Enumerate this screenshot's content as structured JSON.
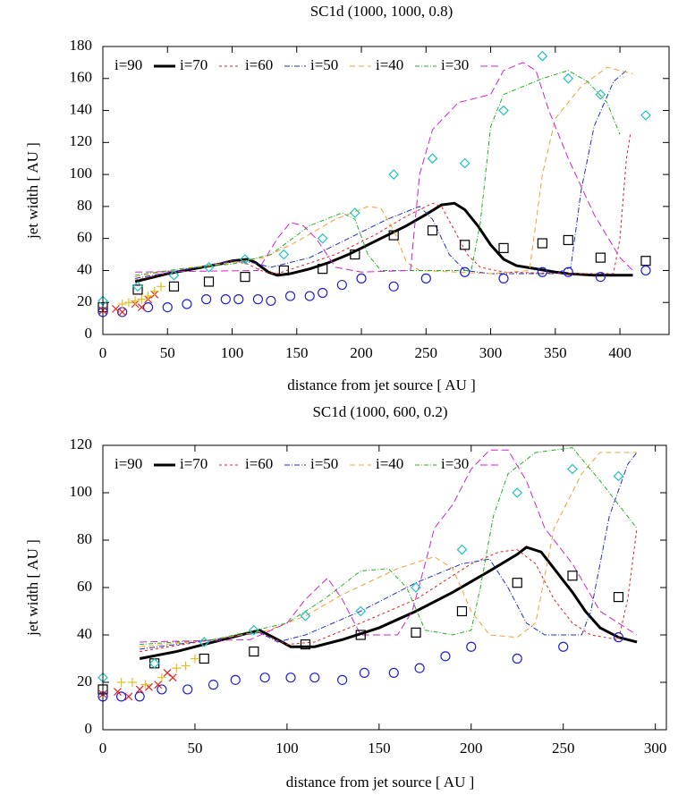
{
  "chart_data": [
    {
      "type": "line",
      "title": "SC1d (1000, 1000, 0.8)",
      "xlabel": "distance from jet source [ AU ]",
      "ylabel": "jet width [ AU ]",
      "xlim": [
        0,
        438
      ],
      "ylim": [
        0,
        180
      ],
      "xticks": [
        0,
        50,
        100,
        150,
        200,
        250,
        300,
        350,
        400
      ],
      "yticks": [
        0,
        20,
        40,
        60,
        80,
        100,
        120,
        140,
        160,
        180
      ],
      "legend": "top",
      "series": [
        {
          "name": "i=90",
          "color": "#000000",
          "width": 3,
          "dash": "none",
          "x": [
            25,
            30,
            50,
            70,
            90,
            100,
            112,
            118,
            128,
            135,
            145,
            160,
            175,
            190,
            205,
            220,
            235,
            250,
            262,
            272,
            280,
            290,
            300,
            310,
            320,
            335,
            350,
            360,
            380,
            410
          ],
          "values": [
            33,
            34,
            38,
            41,
            44,
            46,
            47,
            45,
            39,
            37,
            38,
            41,
            45,
            50,
            56,
            62,
            68,
            75,
            81,
            82,
            78,
            68,
            56,
            47,
            43,
            41,
            39,
            38,
            37,
            37
          ]
        },
        {
          "name": "i=70",
          "color": "#e02020",
          "width": 1,
          "dash": "3,3",
          "x": [
            25,
            60,
            100,
            112,
            125,
            135,
            150,
            180,
            210,
            235,
            255,
            262,
            272,
            282,
            292,
            310,
            360,
            395,
            400,
            405,
            408
          ],
          "values": [
            34,
            40,
            46,
            44,
            39,
            38,
            42,
            50,
            62,
            74,
            82,
            80,
            65,
            50,
            42,
            39,
            38,
            38,
            60,
            110,
            125
          ]
        },
        {
          "name": "i=60",
          "color": "#2030c0",
          "width": 1,
          "dash": "6,2,1,2",
          "x": [
            25,
            60,
            100,
            115,
            130,
            160,
            190,
            220,
            245,
            255,
            268,
            280,
            300,
            350,
            362,
            370,
            380,
            395,
            405
          ],
          "values": [
            35,
            40,
            46,
            45,
            42,
            48,
            60,
            72,
            80,
            72,
            50,
            40,
            38,
            38,
            42,
            90,
            130,
            158,
            165
          ]
        },
        {
          "name": "i=50",
          "color": "#f0a030",
          "width": 1,
          "dash": "6,4",
          "x": [
            25,
            60,
            100,
            125,
            150,
            180,
            205,
            215,
            225,
            235,
            245,
            300,
            330,
            340,
            350,
            370,
            390,
            410
          ],
          "values": [
            36,
            41,
            45,
            48,
            58,
            72,
            80,
            79,
            65,
            45,
            40,
            38,
            40,
            100,
            135,
            155,
            167,
            163
          ]
        },
        {
          "name": "i=40",
          "color": "#20b020",
          "width": 1,
          "dash": "5,2,1,2",
          "x": [
            25,
            60,
            100,
            130,
            160,
            185,
            195,
            205,
            215,
            285,
            292,
            300,
            310,
            340,
            360,
            375,
            390,
            400
          ],
          "values": [
            37,
            41,
            44,
            50,
            68,
            76,
            72,
            50,
            40,
            40,
            70,
            130,
            150,
            160,
            165,
            158,
            145,
            125
          ]
        },
        {
          "name": "i=30",
          "color": "#d020d0",
          "width": 1,
          "dash": "8,4",
          "x": [
            25,
            120,
            135,
            145,
            155,
            165,
            180,
            200,
            238,
            245,
            255,
            275,
            300,
            310,
            325,
            335,
            345,
            360,
            380,
            400,
            410
          ],
          "values": [
            39,
            40,
            60,
            70,
            68,
            60,
            42,
            39,
            40,
            100,
            128,
            145,
            150,
            165,
            170,
            165,
            140,
            110,
            75,
            48,
            40
          ]
        },
        {
          "marker": "square",
          "color": "#000000",
          "x": [
            0,
            27,
            55,
            82,
            110,
            140,
            170,
            195,
            225,
            255,
            280,
            310,
            340,
            360,
            385,
            420
          ],
          "values": [
            17,
            28,
            30,
            33,
            36,
            40,
            41,
            50,
            62,
            65,
            56,
            54,
            57,
            59,
            48,
            46
          ]
        },
        {
          "marker": "diamond",
          "color": "#20c0c0",
          "x": [
            0,
            27,
            55,
            82,
            110,
            140,
            170,
            195,
            225,
            255,
            280,
            310,
            340,
            360,
            385,
            420
          ],
          "values": [
            21,
            30,
            37,
            42,
            47,
            50,
            60,
            76,
            100,
            110,
            107,
            140,
            174,
            160,
            150,
            137
          ]
        },
        {
          "marker": "circle",
          "color": "#2020d0",
          "x": [
            0,
            15,
            35,
            50,
            65,
            80,
            95,
            105,
            120,
            130,
            145,
            160,
            170,
            185,
            200,
            225,
            250,
            280,
            310,
            340,
            360,
            385,
            420
          ],
          "values": [
            14,
            14,
            17,
            17,
            19,
            22,
            22,
            22,
            22,
            21,
            24,
            24,
            26,
            31,
            35,
            30,
            35,
            39,
            35,
            39,
            39,
            36,
            40
          ]
        },
        {
          "marker": "cross",
          "color": "#e02020",
          "x": [
            0,
            10,
            15,
            25,
            30,
            35,
            40
          ],
          "values": [
            15,
            16,
            14,
            19,
            17,
            22,
            25
          ]
        },
        {
          "marker": "plus",
          "color": "#e0c020",
          "x": [
            15,
            20,
            25,
            30,
            35,
            40,
            45
          ],
          "values": [
            19,
            20,
            21,
            22,
            24,
            27,
            30
          ]
        }
      ]
    },
    {
      "type": "line",
      "title": "SC1d (1000, 600, 0.2)",
      "xlabel": "distance from jet source [ AU ]",
      "ylabel": "jet width [ AU ]",
      "xlim": [
        0,
        306
      ],
      "ylim": [
        0,
        120
      ],
      "xticks": [
        0,
        50,
        100,
        150,
        200,
        250,
        300
      ],
      "yticks": [
        0,
        20,
        40,
        60,
        80,
        100,
        120
      ],
      "legend": "top",
      "series": [
        {
          "name": "i=90",
          "color": "#000000",
          "width": 3,
          "dash": "none",
          "x": [
            20,
            40,
            60,
            75,
            85,
            95,
            102,
            115,
            130,
            150,
            170,
            190,
            210,
            225,
            230,
            238,
            245,
            255,
            262,
            270,
            280,
            290
          ],
          "values": [
            30,
            33,
            37,
            40,
            42,
            38,
            35,
            35,
            38,
            43,
            50,
            58,
            67,
            74,
            77,
            75,
            68,
            58,
            50,
            43,
            39,
            37
          ]
        },
        {
          "name": "i=70",
          "color": "#e02020",
          "width": 1,
          "dash": "3,3",
          "x": [
            20,
            60,
            85,
            100,
            115,
            140,
            170,
            200,
            215,
            225,
            235,
            245,
            255,
            265,
            280,
            285,
            290
          ],
          "values": [
            33,
            38,
            41,
            36,
            37,
            45,
            55,
            70,
            75,
            76,
            70,
            55,
            45,
            40,
            38,
            55,
            85
          ]
        },
        {
          "name": "i=60",
          "color": "#2030c0",
          "width": 1,
          "dash": "6,2,1,2",
          "x": [
            20,
            60,
            85,
            95,
            110,
            140,
            170,
            195,
            210,
            220,
            230,
            240,
            260,
            265,
            275,
            285,
            290
          ],
          "values": [
            34,
            38,
            41,
            37,
            40,
            50,
            62,
            70,
            72,
            60,
            45,
            40,
            40,
            50,
            90,
            112,
            117
          ]
        },
        {
          "name": "i=50",
          "color": "#f0a030",
          "width": 1,
          "dash": "6,4",
          "x": [
            20,
            60,
            90,
            110,
            130,
            160,
            180,
            190,
            200,
            210,
            225,
            235,
            245,
            260,
            270,
            290
          ],
          "values": [
            35,
            38,
            42,
            48,
            57,
            68,
            73,
            68,
            50,
            40,
            39,
            45,
            85,
            108,
            117,
            117
          ]
        },
        {
          "name": "i=40",
          "color": "#20b020",
          "width": 1,
          "dash": "5,2,1,2",
          "x": [
            20,
            60,
            100,
            120,
            140,
            155,
            165,
            175,
            190,
            200,
            205,
            212,
            220,
            235,
            255,
            270,
            280,
            290
          ],
          "values": [
            36,
            38,
            45,
            55,
            67,
            68,
            60,
            42,
            40,
            42,
            60,
            90,
            108,
            117,
            119,
            105,
            95,
            85
          ]
        },
        {
          "name": "i=30",
          "color": "#d020d0",
          "width": 1,
          "dash": "8,4",
          "x": [
            20,
            80,
            100,
            110,
            122,
            130,
            140,
            160,
            168,
            175,
            180,
            190,
            200,
            210,
            220,
            230,
            240,
            255,
            270,
            290
          ],
          "values": [
            37,
            38,
            45,
            55,
            64,
            55,
            40,
            40,
            50,
            70,
            85,
            95,
            110,
            118,
            118,
            105,
            85,
            70,
            50,
            40
          ]
        },
        {
          "marker": "square",
          "color": "#000000",
          "x": [
            0,
            28,
            55,
            82,
            110,
            140,
            170,
            195,
            225,
            255,
            280
          ],
          "values": [
            17,
            28,
            30,
            33,
            36,
            40,
            41,
            50,
            62,
            65,
            56
          ]
        },
        {
          "marker": "diamond",
          "color": "#20c0c0",
          "x": [
            0,
            28,
            55,
            82,
            110,
            140,
            170,
            195,
            225,
            255,
            280
          ],
          "values": [
            22,
            28,
            37,
            42,
            48,
            50,
            60,
            76,
            100,
            110,
            107
          ]
        },
        {
          "marker": "circle",
          "color": "#2020d0",
          "x": [
            0,
            10,
            20,
            32,
            46,
            60,
            72,
            88,
            102,
            115,
            130,
            142,
            158,
            172,
            186,
            200,
            225,
            250,
            280
          ],
          "values": [
            14,
            14,
            14,
            17,
            17,
            19,
            21,
            22,
            22,
            22,
            21,
            24,
            24,
            26,
            31,
            35,
            30,
            35,
            39
          ]
        },
        {
          "marker": "cross",
          "color": "#e02020",
          "x": [
            0,
            8,
            14,
            20,
            25,
            30,
            35,
            38
          ],
          "values": [
            15,
            16,
            14,
            17,
            18,
            19,
            24,
            22
          ]
        },
        {
          "marker": "plus",
          "color": "#e0c020",
          "x": [
            10,
            16,
            23,
            32,
            40,
            45,
            50
          ],
          "values": [
            20,
            20,
            19,
            22,
            26,
            27,
            30
          ]
        }
      ]
    }
  ]
}
